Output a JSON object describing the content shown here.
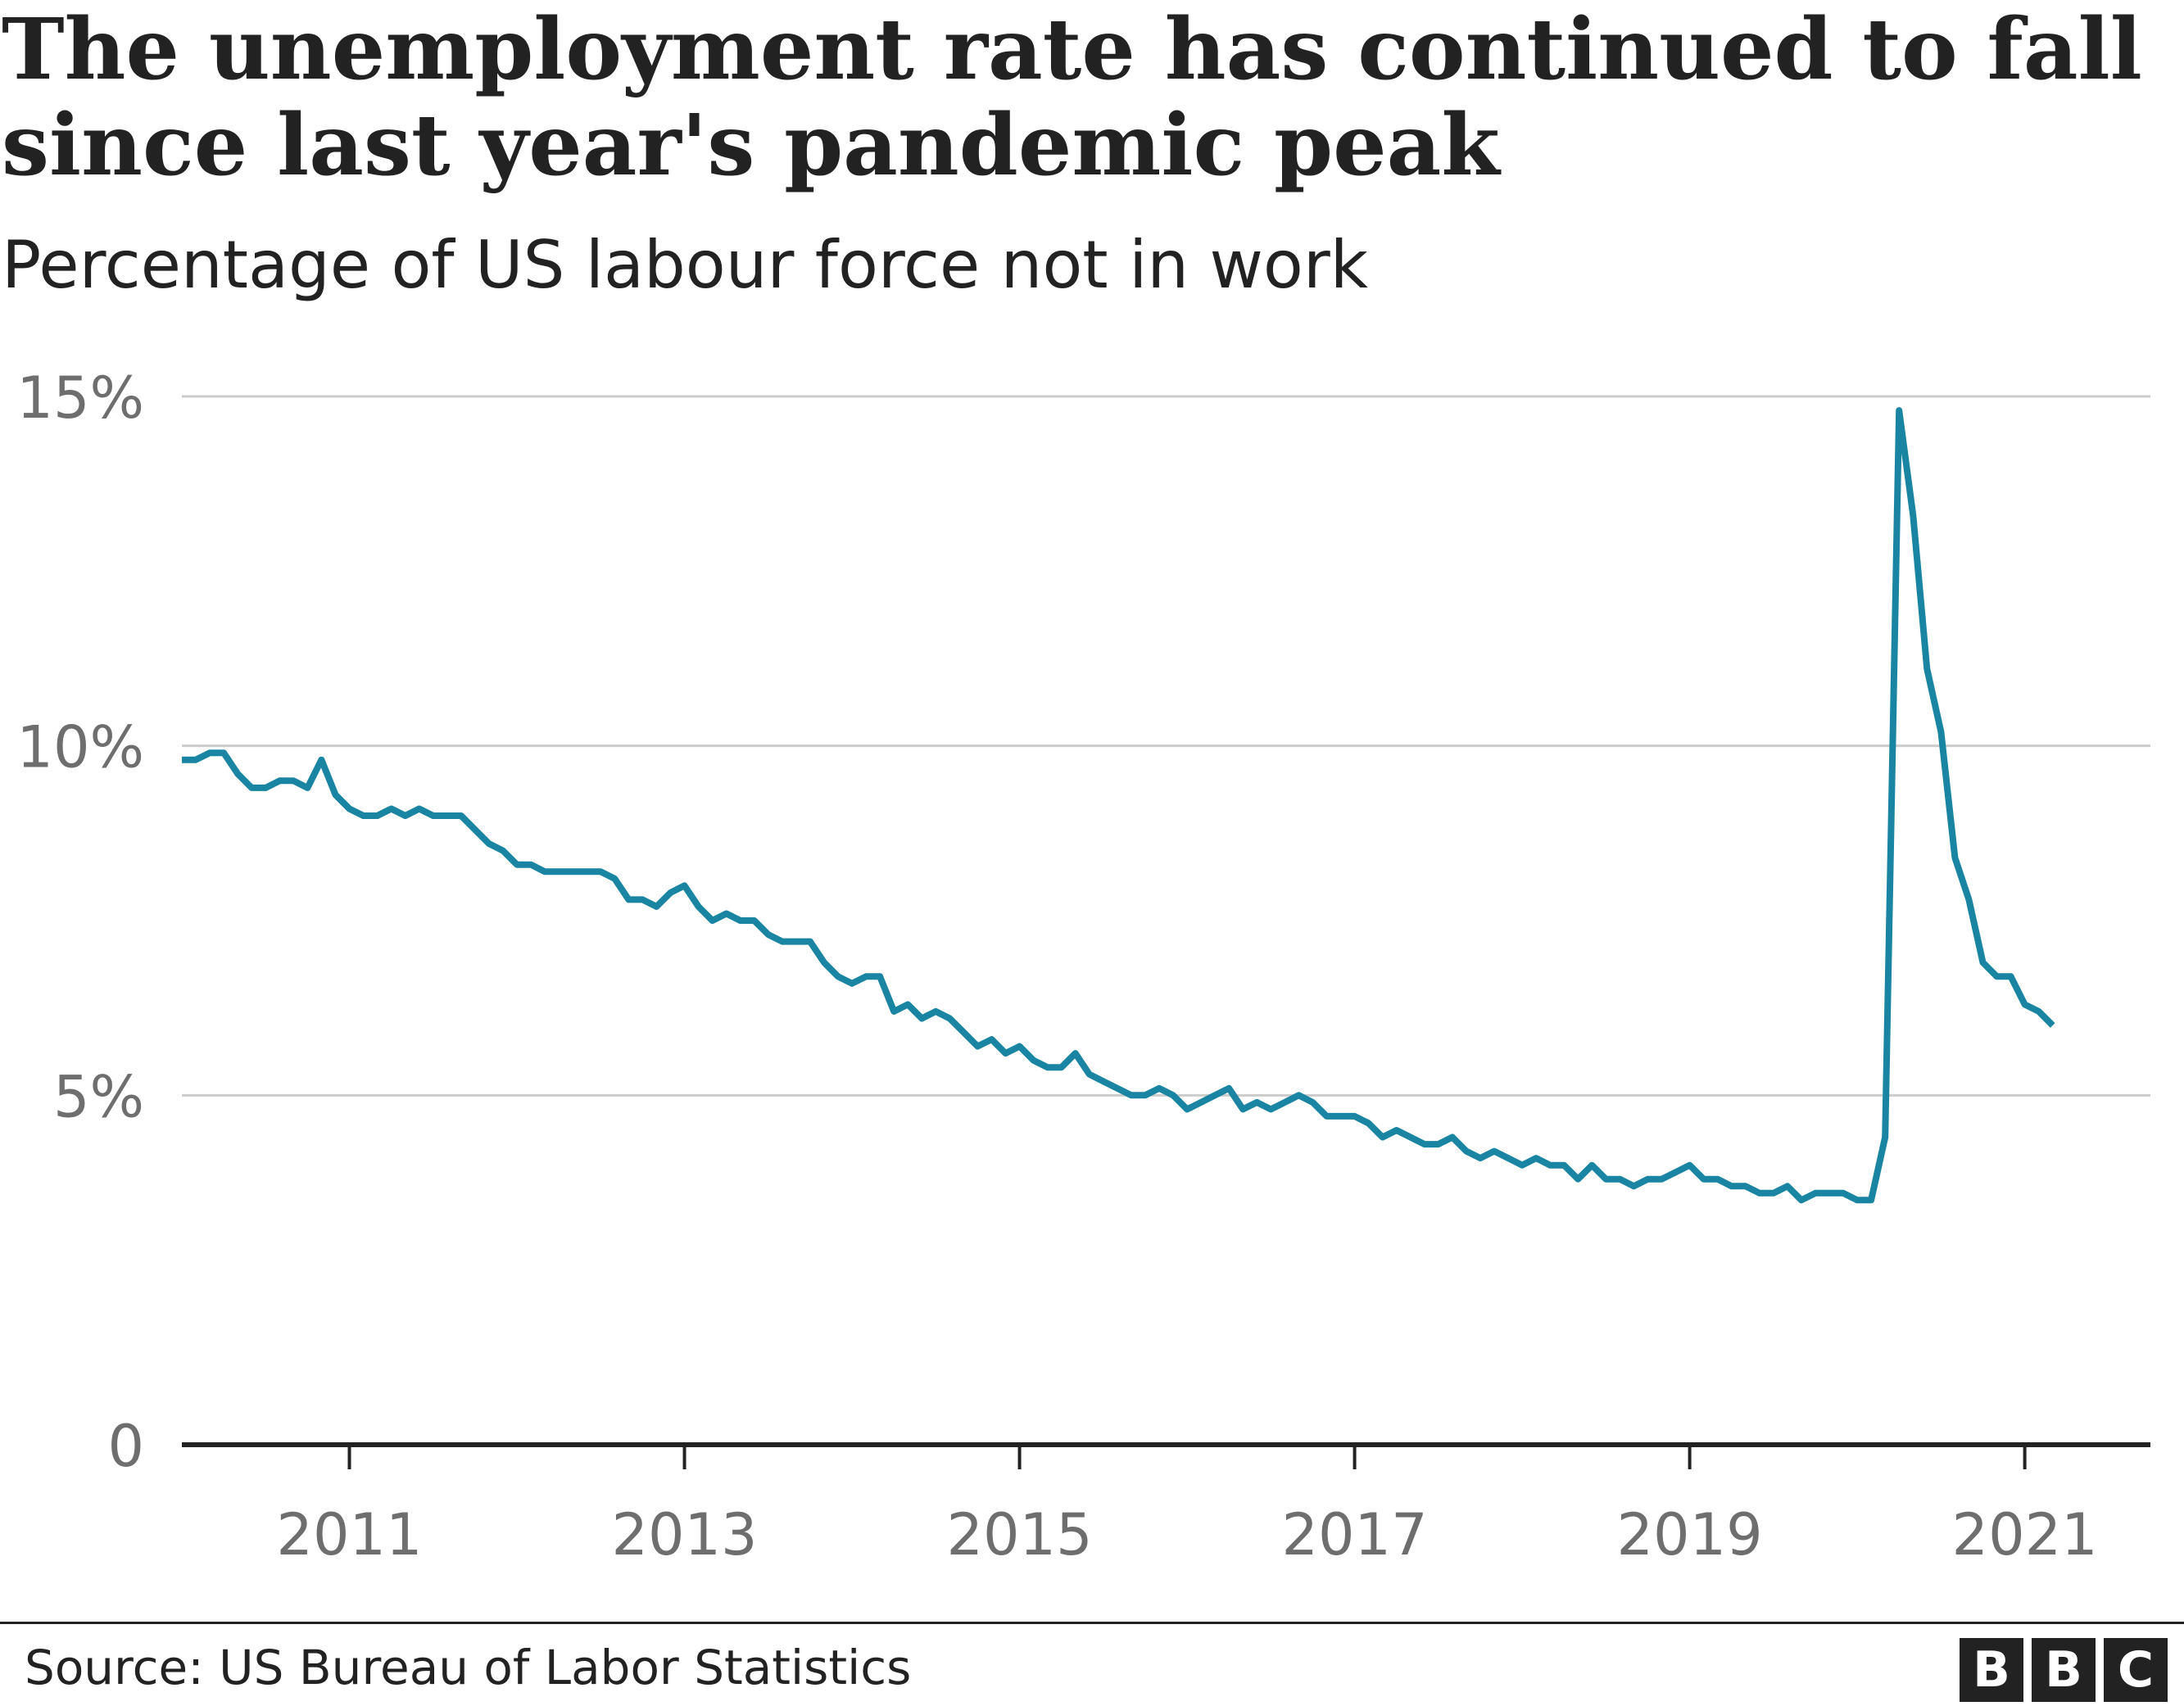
{
  "title": "The unemployment rate has continued to fall since last year's pandemic peak",
  "subtitle": "Percentage of US labour force not in work",
  "source": "Source: US Bureau of Labor Statistics",
  "logo_letters": [
    "B",
    "B",
    "C"
  ],
  "colors": {
    "line": "#1a85a3",
    "grid": "#cccccc",
    "axis": "#222222",
    "tick_text": "#6e6e6e",
    "text": "#222222"
  },
  "chart_data": {
    "type": "line",
    "title": "The unemployment rate has continued to fall since last year's pandemic peak",
    "subtitle": "Percentage of US labour force not in work",
    "xlabel": "",
    "ylabel": "",
    "ylim": [
      0,
      15
    ],
    "xlim": [
      2010.0,
      2021.75
    ],
    "grid": true,
    "y_ticks": [
      {
        "value": 0,
        "label": "0"
      },
      {
        "value": 5,
        "label": "5%"
      },
      {
        "value": 10,
        "label": "10%"
      },
      {
        "value": 15,
        "label": "15%"
      }
    ],
    "x_ticks": [
      {
        "value": 2011,
        "label": "2011"
      },
      {
        "value": 2013,
        "label": "2013"
      },
      {
        "value": 2015,
        "label": "2015"
      },
      {
        "value": 2017,
        "label": "2017"
      },
      {
        "value": 2019,
        "label": "2019"
      },
      {
        "value": 2021,
        "label": "2021"
      }
    ],
    "series": [
      {
        "start": "2010-01",
        "frequency": "monthly",
        "values": [
          9.8,
          9.8,
          9.9,
          9.9,
          9.6,
          9.4,
          9.4,
          9.5,
          9.5,
          9.4,
          9.8,
          9.3,
          9.1,
          9.0,
          9.0,
          9.1,
          9.0,
          9.1,
          9.0,
          9.0,
          9.0,
          8.8,
          8.6,
          8.5,
          8.3,
          8.3,
          8.2,
          8.2,
          8.2,
          8.2,
          8.2,
          8.1,
          7.8,
          7.8,
          7.7,
          7.9,
          8.0,
          7.7,
          7.5,
          7.6,
          7.5,
          7.5,
          7.3,
          7.2,
          7.2,
          7.2,
          6.9,
          6.7,
          6.6,
          6.7,
          6.7,
          6.2,
          6.3,
          6.1,
          6.2,
          6.1,
          5.9,
          5.7,
          5.8,
          5.6,
          5.7,
          5.5,
          5.4,
          5.4,
          5.6,
          5.3,
          5.2,
          5.1,
          5.0,
          5.0,
          5.1,
          5.0,
          4.8,
          4.9,
          5.0,
          5.1,
          4.8,
          4.9,
          4.8,
          4.9,
          5.0,
          4.9,
          4.7,
          4.7,
          4.7,
          4.6,
          4.4,
          4.5,
          4.4,
          4.3,
          4.3,
          4.4,
          4.2,
          4.1,
          4.2,
          4.1,
          4.0,
          4.1,
          4.0,
          4.0,
          3.8,
          4.0,
          3.8,
          3.8,
          3.7,
          3.8,
          3.8,
          3.9,
          4.0,
          3.8,
          3.8,
          3.7,
          3.7,
          3.6,
          3.6,
          3.7,
          3.5,
          3.6,
          3.6,
          3.6,
          3.5,
          3.5,
          4.4,
          14.8,
          13.3,
          11.1,
          10.2,
          8.4,
          7.8,
          6.9,
          6.7,
          6.7,
          6.3,
          6.2,
          6.0
        ]
      }
    ]
  }
}
